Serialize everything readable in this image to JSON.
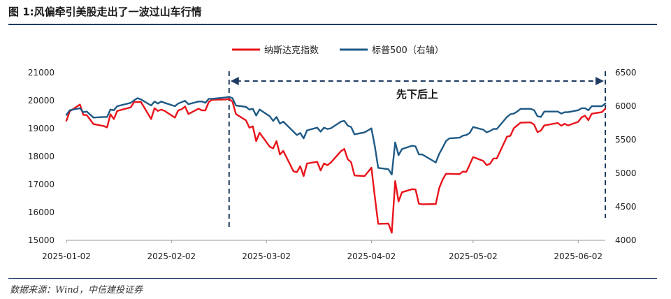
{
  "figure_title": "图 1:风偏牵引美股走出了一波过山车行情",
  "source_note": "数据来源：Wind，中信建投证券",
  "colors": {
    "nasdaq": "#e8141b",
    "sp500": "#1f5a85",
    "rule": "#1f3b63",
    "annotation": "#1f3b63"
  },
  "chart_data": {
    "type": "line",
    "title": "",
    "legend_position": "top-center",
    "grid": false,
    "x_ticks": [
      "2025-01-02",
      "2025-02-02",
      "2025-03-02",
      "2025-04-02",
      "2025-05-02",
      "2025-06-02"
    ],
    "x_range": [
      "2025-01-02",
      "2025-06-10"
    ],
    "y_left": {
      "range": [
        15000,
        21000
      ],
      "ticks": [
        "15000",
        "16000",
        "17000",
        "18000",
        "19000",
        "20000",
        "21000"
      ]
    },
    "y_right": {
      "range": [
        4000,
        6500
      ],
      "ticks": [
        "4000",
        "4500",
        "5000",
        "5500",
        "6000",
        "6500"
      ]
    },
    "series": [
      {
        "name": "纳斯达克指数",
        "axis": "left",
        "x": [
          "2025-01-02",
          "2025-01-03",
          "2025-01-06",
          "2025-01-07",
          "2025-01-08",
          "2025-01-10",
          "2025-01-13",
          "2025-01-14",
          "2025-01-15",
          "2025-01-16",
          "2025-01-17",
          "2025-01-21",
          "2025-01-22",
          "2025-01-23",
          "2025-01-24",
          "2025-01-27",
          "2025-01-28",
          "2025-01-29",
          "2025-01-30",
          "2025-01-31",
          "2025-02-03",
          "2025-02-04",
          "2025-02-05",
          "2025-02-06",
          "2025-02-07",
          "2025-02-10",
          "2025-02-11",
          "2025-02-12",
          "2025-02-13",
          "2025-02-14",
          "2025-02-18",
          "2025-02-19",
          "2025-02-20",
          "2025-02-21",
          "2025-02-24",
          "2025-02-25",
          "2025-02-26",
          "2025-02-27",
          "2025-02-28",
          "2025-03-03",
          "2025-03-04",
          "2025-03-05",
          "2025-03-06",
          "2025-03-07",
          "2025-03-10",
          "2025-03-11",
          "2025-03-12",
          "2025-03-13",
          "2025-03-14",
          "2025-03-17",
          "2025-03-18",
          "2025-03-19",
          "2025-03-20",
          "2025-03-21",
          "2025-03-24",
          "2025-03-25",
          "2025-03-26",
          "2025-03-27",
          "2025-03-28",
          "2025-03-31",
          "2025-04-01",
          "2025-04-02",
          "2025-04-03",
          "2025-04-04",
          "2025-04-07",
          "2025-04-08",
          "2025-04-09",
          "2025-04-10",
          "2025-04-11",
          "2025-04-14",
          "2025-04-15",
          "2025-04-16",
          "2025-04-17",
          "2025-04-21",
          "2025-04-22",
          "2025-04-23",
          "2025-04-24",
          "2025-04-25",
          "2025-04-28",
          "2025-04-29",
          "2025-04-30",
          "2025-05-01",
          "2025-05-02",
          "2025-05-05",
          "2025-05-06",
          "2025-05-07",
          "2025-05-08",
          "2025-05-09",
          "2025-05-12",
          "2025-05-13",
          "2025-05-14",
          "2025-05-15",
          "2025-05-16",
          "2025-05-19",
          "2025-05-20",
          "2025-05-21",
          "2025-05-22",
          "2025-05-23",
          "2025-05-27",
          "2025-05-28",
          "2025-05-29",
          "2025-05-30",
          "2025-06-02",
          "2025-06-03",
          "2025-06-04",
          "2025-06-05",
          "2025-06-06",
          "2025-06-09",
          "2025-06-10"
        ],
        "values": [
          19280,
          19620,
          19860,
          19490,
          19480,
          19160,
          19090,
          19040,
          19510,
          19340,
          19630,
          19760,
          19950,
          19950,
          19950,
          19340,
          19730,
          19630,
          19680,
          19630,
          19390,
          19650,
          19690,
          19790,
          19520,
          19710,
          19650,
          19650,
          19950,
          20030,
          20040,
          20060,
          19960,
          19520,
          19290,
          19030,
          19080,
          18550,
          18850,
          18350,
          18290,
          18550,
          18070,
          18200,
          17470,
          17440,
          17650,
          17300,
          17750,
          17810,
          17500,
          17750,
          17690,
          17780,
          18190,
          18270,
          17900,
          17800,
          17320,
          17300,
          17450,
          17600,
          16550,
          15590,
          15600,
          15270,
          17120,
          16390,
          16720,
          16830,
          16820,
          16310,
          16290,
          16300,
          16870,
          17170,
          17380,
          17380,
          17370,
          17460,
          17450,
          17710,
          17980,
          17840,
          17690,
          17740,
          17930,
          17930,
          18710,
          18740,
          19010,
          19110,
          19210,
          19220,
          19140,
          18870,
          18930,
          19110,
          19200,
          19100,
          19170,
          19110,
          19240,
          19400,
          19460,
          19300,
          19530,
          19590,
          19710
        ]
      },
      {
        "name": "标普500（右轴）",
        "axis": "right",
        "x": [
          "2025-01-02",
          "2025-01-03",
          "2025-01-06",
          "2025-01-07",
          "2025-01-08",
          "2025-01-10",
          "2025-01-13",
          "2025-01-14",
          "2025-01-15",
          "2025-01-16",
          "2025-01-17",
          "2025-01-21",
          "2025-01-22",
          "2025-01-23",
          "2025-01-24",
          "2025-01-27",
          "2025-01-28",
          "2025-01-29",
          "2025-01-30",
          "2025-01-31",
          "2025-02-03",
          "2025-02-04",
          "2025-02-05",
          "2025-02-06",
          "2025-02-07",
          "2025-02-10",
          "2025-02-11",
          "2025-02-12",
          "2025-02-13",
          "2025-02-14",
          "2025-02-18",
          "2025-02-19",
          "2025-02-20",
          "2025-02-21",
          "2025-02-24",
          "2025-02-25",
          "2025-02-26",
          "2025-02-27",
          "2025-02-28",
          "2025-03-03",
          "2025-03-04",
          "2025-03-05",
          "2025-03-06",
          "2025-03-07",
          "2025-03-10",
          "2025-03-11",
          "2025-03-12",
          "2025-03-13",
          "2025-03-14",
          "2025-03-17",
          "2025-03-18",
          "2025-03-19",
          "2025-03-20",
          "2025-03-21",
          "2025-03-24",
          "2025-03-25",
          "2025-03-26",
          "2025-03-27",
          "2025-03-28",
          "2025-03-31",
          "2025-04-01",
          "2025-04-02",
          "2025-04-03",
          "2025-04-04",
          "2025-04-07",
          "2025-04-08",
          "2025-04-09",
          "2025-04-10",
          "2025-04-11",
          "2025-04-14",
          "2025-04-15",
          "2025-04-16",
          "2025-04-17",
          "2025-04-21",
          "2025-04-22",
          "2025-04-23",
          "2025-04-24",
          "2025-04-25",
          "2025-04-28",
          "2025-04-29",
          "2025-04-30",
          "2025-05-01",
          "2025-05-02",
          "2025-05-05",
          "2025-05-06",
          "2025-05-07",
          "2025-05-08",
          "2025-05-09",
          "2025-05-12",
          "2025-05-13",
          "2025-05-14",
          "2025-05-15",
          "2025-05-16",
          "2025-05-19",
          "2025-05-20",
          "2025-05-21",
          "2025-05-22",
          "2025-05-23",
          "2025-05-27",
          "2025-05-28",
          "2025-05-29",
          "2025-05-30",
          "2025-06-02",
          "2025-06-03",
          "2025-06-04",
          "2025-06-05",
          "2025-06-06",
          "2025-06-09",
          "2025-06-10"
        ],
        "values": [
          5870,
          5940,
          5970,
          5910,
          5920,
          5830,
          5840,
          5840,
          5950,
          5940,
          6000,
          6050,
          6090,
          6120,
          6100,
          6010,
          6070,
          6040,
          6070,
          6050,
          6000,
          6040,
          6060,
          6080,
          6030,
          6070,
          6070,
          6050,
          6110,
          6110,
          6130,
          6140,
          6120,
          6010,
          5990,
          5950,
          5960,
          5860,
          5950,
          5850,
          5780,
          5840,
          5740,
          5770,
          5620,
          5570,
          5600,
          5520,
          5640,
          5680,
          5620,
          5680,
          5660,
          5670,
          5770,
          5780,
          5710,
          5690,
          5580,
          5610,
          5640,
          5670,
          5400,
          5080,
          5060,
          4980,
          5460,
          5270,
          5360,
          5410,
          5400,
          5280,
          5280,
          5160,
          5290,
          5380,
          5480,
          5520,
          5530,
          5560,
          5570,
          5600,
          5690,
          5650,
          5610,
          5630,
          5660,
          5660,
          5840,
          5880,
          5890,
          5920,
          5960,
          5960,
          5940,
          5850,
          5840,
          5920,
          5920,
          5890,
          5910,
          5910,
          5940,
          5970,
          5970,
          5940,
          6000,
          6000,
          6040
        ]
      }
    ],
    "annotation": {
      "label": "先下后上",
      "start": "2025-02-19",
      "end": "2025-06-10"
    }
  }
}
